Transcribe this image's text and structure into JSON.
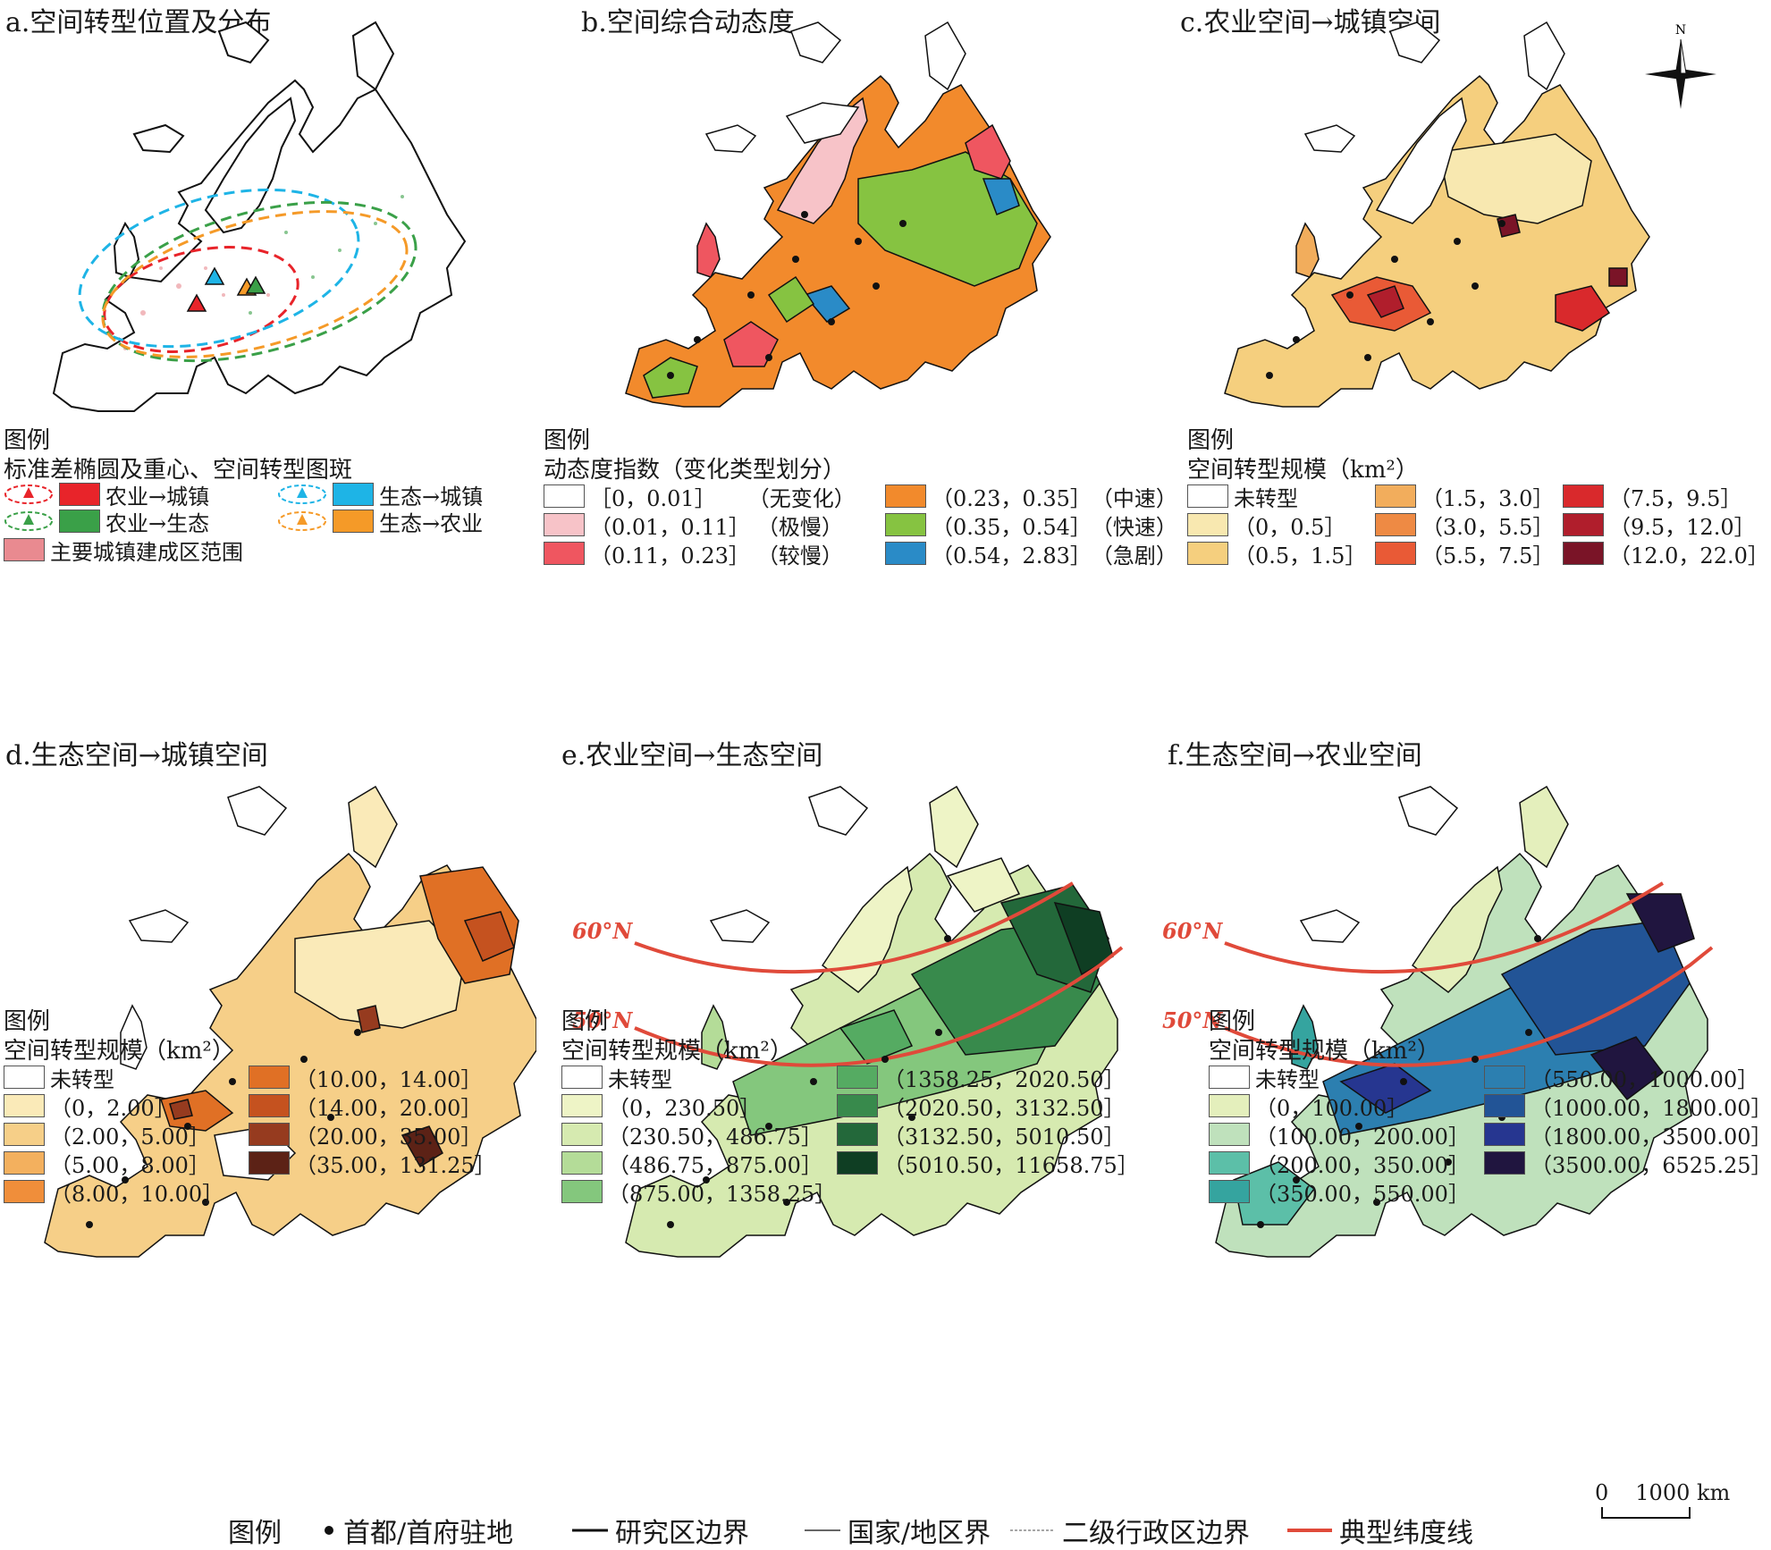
{
  "panels": {
    "a": {
      "title": "a.空间转型位置及分布",
      "legend_head": "图例",
      "legend_sub": "标准差椭圆及重心、空间转型图斑",
      "items": [
        {
          "label": "农业→城镇",
          "color": "#e8242a"
        },
        {
          "label": "生态→城镇",
          "color": "#1eb4e6"
        },
        {
          "label": "农业→生态",
          "color": "#3aa048"
        },
        {
          "label": "生态→农业",
          "color": "#f59a28"
        }
      ],
      "extra": {
        "label": "主要城镇建成区范围",
        "color": "#e98a90"
      }
    },
    "b": {
      "title": "b.空间综合动态度",
      "legend_head": "图例",
      "legend_sub": "动态度指数（变化类型划分）",
      "items": [
        {
          "label": "［0，0.01］",
          "type": "（无变化）",
          "color": "#ffffff"
        },
        {
          "label": "（0.01，0.11］",
          "type": "（极慢）",
          "color": "#f7c3c8"
        },
        {
          "label": "（0.11，0.23］",
          "type": "（较慢）",
          "color": "#ef5660"
        },
        {
          "label": "（0.23，0.35］",
          "type": "（中速）",
          "color": "#f28a2c"
        },
        {
          "label": "（0.35，0.54］",
          "type": "（快速）",
          "color": "#86c341"
        },
        {
          "label": "（0.54，2.83］",
          "type": "（急剧）",
          "color": "#2a8bc7"
        }
      ]
    },
    "c": {
      "title": "c.农业空间→城镇空间",
      "legend_head": "图例",
      "legend_sub": "空间转型规模（km²）",
      "items": [
        {
          "label": "未转型",
          "color": "#ffffff"
        },
        {
          "label": "（0，0.5］",
          "color": "#f8e8b0"
        },
        {
          "label": "（0.5，1.5］",
          "color": "#f5cf7e"
        },
        {
          "label": "（1.5，3.0］",
          "color": "#f2ad5c"
        },
        {
          "label": "（3.0，5.5］",
          "color": "#ee8a44"
        },
        {
          "label": "（5.5，7.5］",
          "color": "#e95a36"
        },
        {
          "label": "（7.5，9.5］",
          "color": "#d9292c"
        },
        {
          "label": "（9.5，12.0］",
          "color": "#b01e2c"
        },
        {
          "label": "（12.0，22.0］",
          "color": "#7a1427"
        }
      ]
    },
    "d": {
      "title": "d.生态空间→城镇空间",
      "legend_head": "图例",
      "legend_sub": "空间转型规模（km²）",
      "items": [
        {
          "label": "未转型",
          "color": "#ffffff"
        },
        {
          "label": "（0，2.00］",
          "color": "#faeab8"
        },
        {
          "label": "（2.00，5.00］",
          "color": "#f6cf88"
        },
        {
          "label": "（5.00，8.00］",
          "color": "#f3b05e"
        },
        {
          "label": "（8.00，10.00］",
          "color": "#f08e3a"
        },
        {
          "label": "（10.00，14.00］",
          "color": "#e07025"
        },
        {
          "label": "（14.00，20.00］",
          "color": "#c5521f"
        },
        {
          "label": "（20.00，35.00］",
          "color": "#963b1f"
        },
        {
          "label": "（35.00，131.25］",
          "color": "#5c2216"
        }
      ]
    },
    "e": {
      "title": "e.农业空间→生态空间",
      "legend_head": "图例",
      "legend_sub": "空间转型规模（km²）",
      "items": [
        {
          "label": "未转型",
          "color": "#ffffff"
        },
        {
          "label": "（0，230.50］",
          "color": "#eef4c6"
        },
        {
          "label": "（230.50，486.75］",
          "color": "#d6eab0"
        },
        {
          "label": "（486.75，875.00］",
          "color": "#b4dc98"
        },
        {
          "label": "（875.00，1358.25］",
          "color": "#84c77d"
        },
        {
          "label": "（1358.25，2020.50］",
          "color": "#55ab62"
        },
        {
          "label": "（2020.50，3132.50］",
          "color": "#388a4c"
        },
        {
          "label": "（3132.50，5010.50］",
          "color": "#23683a"
        },
        {
          "label": "（5010.50，11658.75］",
          "color": "#0f3e23"
        }
      ],
      "lat_labels": [
        "60°N",
        "50°N"
      ]
    },
    "f": {
      "title": "f.生态空间→农业空间",
      "legend_head": "图例",
      "legend_sub": "空间转型规模（km²）",
      "items": [
        {
          "label": "未转型",
          "color": "#ffffff"
        },
        {
          "label": "（0，100.00］",
          "color": "#e4efbc"
        },
        {
          "label": "（100.00，200.00］",
          "color": "#bfe1bc"
        },
        {
          "label": "（200.00，350.00］",
          "color": "#5cbfa8"
        },
        {
          "label": "（350.00，550.00］",
          "color": "#35a49f"
        },
        {
          "label": "（550.00，1000.00］",
          "color": "#2c7fb0"
        },
        {
          "label": "（1000.00，1800.00］",
          "color": "#225496"
        },
        {
          "label": "（1800.00，3500.00］",
          "color": "#263690"
        },
        {
          "label": "（3500.00，6525.25］",
          "color": "#20153f"
        }
      ],
      "lat_labels": [
        "60°N",
        "50°N"
      ]
    }
  },
  "north_arrow": {
    "label": "N"
  },
  "bottom_legend": {
    "head": "图例",
    "items": [
      "首都/首府驻地",
      "研究区边界",
      "国家/地区界",
      "二级行政区边界",
      "典型纬度线"
    ],
    "scale_zero": "0",
    "scale_end": "1000 km"
  },
  "colors": {
    "latitude_line": "#e04a3a",
    "outline": "#111111"
  }
}
